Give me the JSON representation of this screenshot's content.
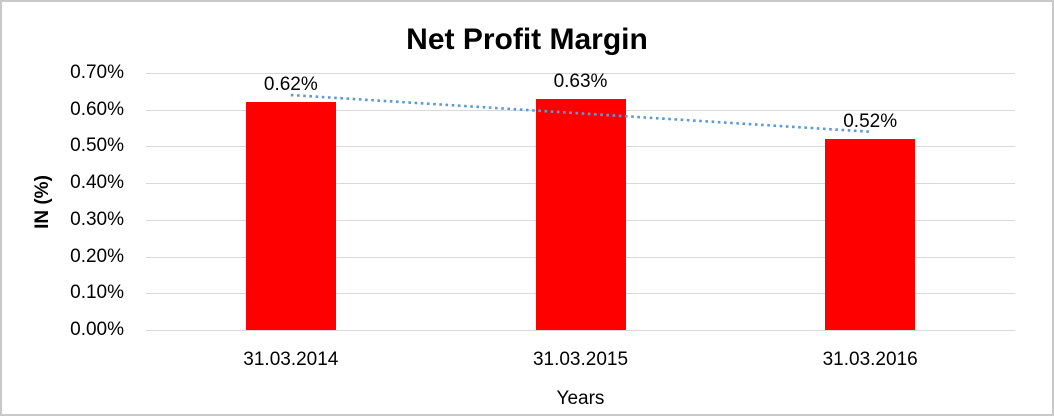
{
  "chart_data": {
    "type": "bar",
    "title": "Net Profit Margin",
    "xlabel": "Years",
    "ylabel": "IN (%)",
    "categories": [
      "31.03.2014",
      "31.03.2015",
      "31.03.2016"
    ],
    "values": [
      0.62,
      0.63,
      0.52
    ],
    "data_labels": [
      "0.62%",
      "0.63%",
      "0.52%"
    ],
    "y_ticks": [
      "0.70%",
      "0.60%",
      "0.50%",
      "0.40%",
      "0.30%",
      "0.20%",
      "0.10%",
      "0.00%"
    ],
    "ylim": [
      0,
      0.7
    ],
    "grid": true,
    "legend": "none",
    "trendline": {
      "type": "linear",
      "style": "dotted",
      "start_value": 0.64,
      "end_value": 0.54
    },
    "colors": {
      "bar": "#ff0000",
      "trendline": "#5b9bd5",
      "gridline": "#d9d9d9",
      "text": "#000000",
      "background": "#ffffff",
      "border": "#c9c9c9"
    }
  }
}
